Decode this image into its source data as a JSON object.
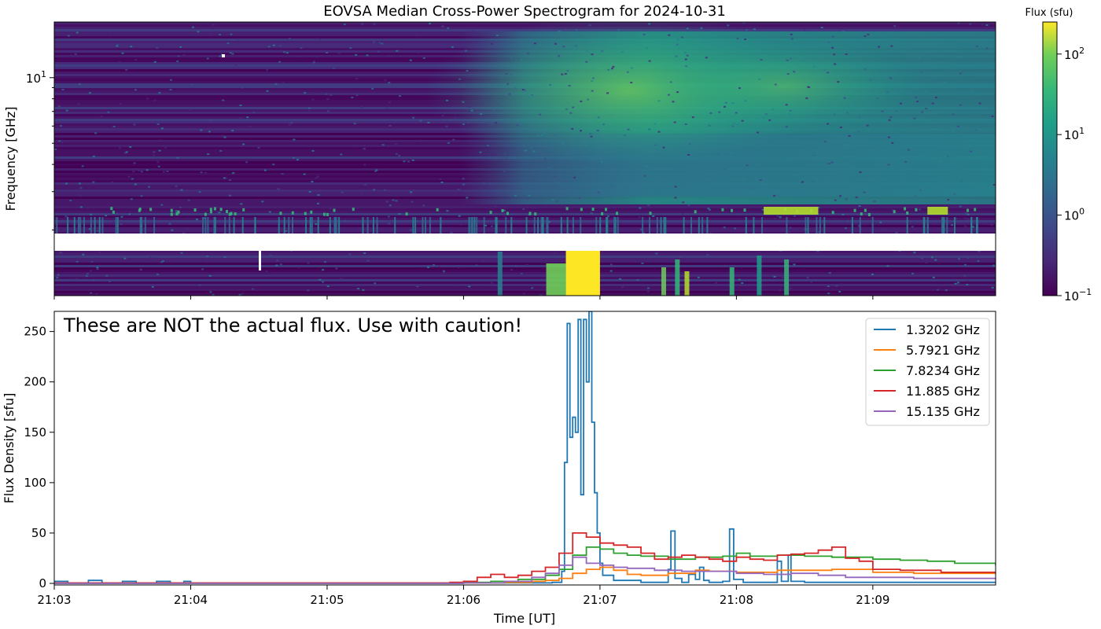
{
  "chart_data": [
    {
      "type": "heatmap",
      "title": "EOVSA Median Cross-Power Spectrogram for 2024-10-31",
      "xlabel": "",
      "ylabel": "Frequency [GHz]",
      "yscale": "log",
      "ylim": [
        1.0,
        18.0
      ],
      "yticks": [
        {
          "value": 10,
          "label": "10",
          "exp": "1"
        }
      ],
      "xlim": [
        "21:03",
        "21:09:54"
      ],
      "xticks": [
        "21:03",
        "21:04",
        "21:05",
        "21:06",
        "21:07",
        "21:08",
        "21:09"
      ],
      "colorbar": {
        "title": "Flux (sfu)",
        "scale": "log",
        "range": [
          0.1,
          250
        ],
        "colormap": "viridis",
        "ticks": [
          {
            "base": "10",
            "exp": "2",
            "value": 100
          },
          {
            "base": "10",
            "exp": "1",
            "value": 10
          },
          {
            "base": "10",
            "exp": "0",
            "value": 1
          },
          {
            "base": "10",
            "exp": "−1",
            "value": 0.1
          }
        ]
      },
      "features": {
        "gap_band_ghz": [
          1.6,
          2.1
        ],
        "flare_onset": "21:06",
        "flare_peak": "21:07",
        "low_freq_burst": [
          "21:06:45",
          "21:07:00"
        ]
      }
    },
    {
      "type": "line",
      "title": "",
      "annotation": "These are NOT the actual flux. Use with caution!",
      "xlabel": "Time [UT]",
      "ylabel": "Flux Density [sfu]",
      "ylim": [
        0,
        270
      ],
      "yticks": [
        0,
        50,
        100,
        150,
        200,
        250
      ],
      "xticks": [
        "21:03",
        "21:04",
        "21:05",
        "21:06",
        "21:07",
        "21:08",
        "21:09"
      ],
      "legend_position": "top-right",
      "x_unit": "minutes after 21:00 UT",
      "series": [
        {
          "name": "1.3202 GHz",
          "color": "#1f77b4",
          "points": [
            [
              3.0,
              2
            ],
            [
              3.05,
              2
            ],
            [
              3.1,
              0.5
            ],
            [
              3.25,
              3
            ],
            [
              3.35,
              0.5
            ],
            [
              3.5,
              2
            ],
            [
              3.6,
              0.5
            ],
            [
              3.75,
              2
            ],
            [
              3.85,
              0.5
            ],
            [
              3.95,
              2
            ],
            [
              4.0,
              0.5
            ],
            [
              6.4,
              0.5
            ],
            [
              6.65,
              1
            ],
            [
              6.72,
              12
            ],
            [
              6.74,
              120
            ],
            [
              6.76,
              258
            ],
            [
              6.78,
              145
            ],
            [
              6.8,
              165
            ],
            [
              6.82,
              150
            ],
            [
              6.84,
              262
            ],
            [
              6.86,
              88
            ],
            [
              6.88,
              262
            ],
            [
              6.9,
              200
            ],
            [
              6.92,
              270
            ],
            [
              6.94,
              160
            ],
            [
              6.96,
              90
            ],
            [
              6.98,
              50
            ],
            [
              7.0,
              20
            ],
            [
              7.02,
              8
            ],
            [
              7.1,
              3
            ],
            [
              7.3,
              1
            ],
            [
              7.45,
              1
            ],
            [
              7.5,
              14
            ],
            [
              7.52,
              52
            ],
            [
              7.55,
              5
            ],
            [
              7.6,
              1
            ],
            [
              7.65,
              9
            ],
            [
              7.7,
              4
            ],
            [
              7.73,
              16
            ],
            [
              7.76,
              3
            ],
            [
              7.8,
              1
            ],
            [
              7.9,
              2
            ],
            [
              7.95,
              54
            ],
            [
              7.98,
              4
            ],
            [
              8.05,
              1
            ],
            [
              8.3,
              22
            ],
            [
              8.33,
              2
            ],
            [
              8.38,
              28
            ],
            [
              8.4,
              2
            ],
            [
              8.5,
              1
            ],
            [
              9.9,
              1
            ]
          ]
        },
        {
          "name": "5.7921 GHz",
          "color": "#ff7f0e",
          "points": [
            [
              3.0,
              0
            ],
            [
              6.0,
              0.5
            ],
            [
              6.3,
              1
            ],
            [
              6.5,
              2
            ],
            [
              6.6,
              3
            ],
            [
              6.7,
              5
            ],
            [
              6.8,
              10
            ],
            [
              6.9,
              14
            ],
            [
              7.0,
              16
            ],
            [
              7.1,
              13
            ],
            [
              7.2,
              9
            ],
            [
              7.3,
              8
            ],
            [
              7.5,
              10
            ],
            [
              7.7,
              13
            ],
            [
              7.8,
              12
            ],
            [
              8.0,
              11
            ],
            [
              8.3,
              13
            ],
            [
              8.5,
              13
            ],
            [
              8.7,
              14
            ],
            [
              9.0,
              11
            ],
            [
              9.3,
              10
            ],
            [
              9.6,
              10
            ],
            [
              9.9,
              9
            ]
          ]
        },
        {
          "name": "7.8234 GHz",
          "color": "#2ca02c",
          "points": [
            [
              3.0,
              0
            ],
            [
              6.0,
              1
            ],
            [
              6.2,
              2
            ],
            [
              6.4,
              4
            ],
            [
              6.6,
              8
            ],
            [
              6.7,
              14
            ],
            [
              6.8,
              28
            ],
            [
              6.9,
              36
            ],
            [
              7.0,
              34
            ],
            [
              7.1,
              30
            ],
            [
              7.2,
              28
            ],
            [
              7.3,
              27
            ],
            [
              7.5,
              24
            ],
            [
              7.7,
              26
            ],
            [
              7.9,
              27
            ],
            [
              8.0,
              30
            ],
            [
              8.1,
              27
            ],
            [
              8.3,
              28
            ],
            [
              8.5,
              27
            ],
            [
              8.7,
              26
            ],
            [
              9.0,
              24
            ],
            [
              9.2,
              23
            ],
            [
              9.4,
              22
            ],
            [
              9.6,
              20
            ],
            [
              9.9,
              18
            ]
          ]
        },
        {
          "name": "11.885 GHz",
          "color": "#d62728",
          "points": [
            [
              3.0,
              0.5
            ],
            [
              5.9,
              1
            ],
            [
              6.0,
              2
            ],
            [
              6.1,
              6
            ],
            [
              6.2,
              9
            ],
            [
              6.3,
              6
            ],
            [
              6.4,
              8
            ],
            [
              6.5,
              12
            ],
            [
              6.6,
              16
            ],
            [
              6.7,
              30
            ],
            [
              6.8,
              50
            ],
            [
              6.9,
              46
            ],
            [
              7.0,
              40
            ],
            [
              7.1,
              38
            ],
            [
              7.2,
              36
            ],
            [
              7.3,
              30
            ],
            [
              7.4,
              24
            ],
            [
              7.5,
              26
            ],
            [
              7.6,
              28
            ],
            [
              7.7,
              26
            ],
            [
              7.8,
              24
            ],
            [
              7.9,
              22
            ],
            [
              8.0,
              26
            ],
            [
              8.1,
              24
            ],
            [
              8.2,
              23
            ],
            [
              8.3,
              28
            ],
            [
              8.4,
              29
            ],
            [
              8.5,
              30
            ],
            [
              8.6,
              33
            ],
            [
              8.7,
              36
            ],
            [
              8.8,
              25
            ],
            [
              8.9,
              22
            ],
            [
              9.0,
              14
            ],
            [
              9.2,
              13
            ],
            [
              9.5,
              11
            ],
            [
              9.9,
              10
            ]
          ]
        },
        {
          "name": "15.135 GHz",
          "color": "#9467bd",
          "points": [
            [
              3.0,
              0
            ],
            [
              6.0,
              0.5
            ],
            [
              6.3,
              2
            ],
            [
              6.5,
              6
            ],
            [
              6.6,
              10
            ],
            [
              6.7,
              18
            ],
            [
              6.8,
              26
            ],
            [
              6.9,
              20
            ],
            [
              7.0,
              18
            ],
            [
              7.1,
              16
            ],
            [
              7.2,
              15
            ],
            [
              7.4,
              13
            ],
            [
              7.6,
              12
            ],
            [
              7.8,
              12
            ],
            [
              8.0,
              10
            ],
            [
              8.2,
              9
            ],
            [
              8.4,
              10
            ],
            [
              8.6,
              8
            ],
            [
              8.8,
              6
            ],
            [
              9.0,
              6
            ],
            [
              9.3,
              5
            ],
            [
              9.6,
              5
            ],
            [
              9.9,
              4
            ]
          ]
        }
      ]
    }
  ]
}
